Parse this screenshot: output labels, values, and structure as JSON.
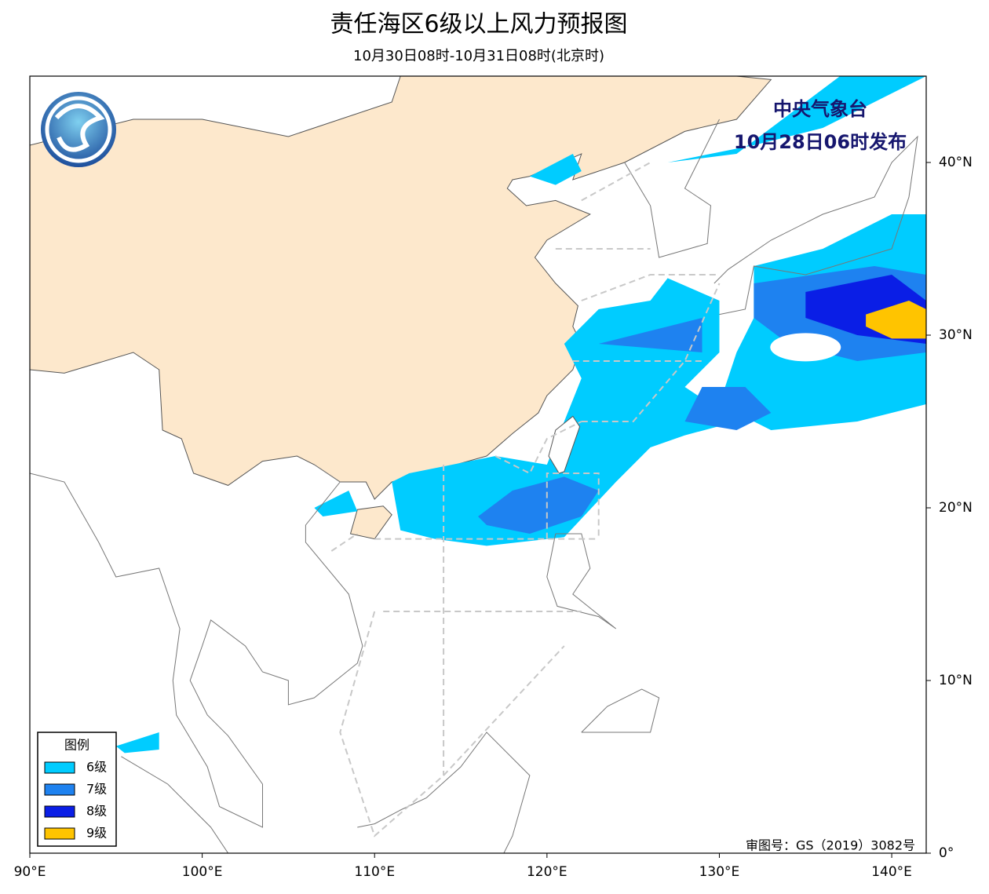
{
  "header": {
    "title": "责任海区6级以上风力预报图",
    "subtitle": "10月30日08时-10月31日08时(北京时)"
  },
  "map": {
    "issuer": "中央气象台",
    "issued": "10月28日06时发布",
    "approval": "审图号：GS（2019）3082号",
    "xlim": [
      90,
      142
    ],
    "ylim": [
      0,
      45
    ],
    "xticks": [
      {
        "value": 90,
        "label": "90°E"
      },
      {
        "value": 100,
        "label": "100°E"
      },
      {
        "value": 110,
        "label": "110°E"
      },
      {
        "value": 120,
        "label": "120°E"
      },
      {
        "value": 130,
        "label": "130°E"
      },
      {
        "value": 140,
        "label": "140°E"
      }
    ],
    "yticks": [
      {
        "value": 0,
        "label": "0°"
      },
      {
        "value": 10,
        "label": "10°N"
      },
      {
        "value": 20,
        "label": "20°N"
      },
      {
        "value": 30,
        "label": "30°N"
      },
      {
        "value": 40,
        "label": "40°N"
      }
    ]
  },
  "legend": {
    "title": "图例",
    "items": [
      {
        "label": "6级",
        "color": "#00ccff"
      },
      {
        "label": "7级",
        "color": "#1e82f0"
      },
      {
        "label": "8级",
        "color": "#0a1ee6"
      },
      {
        "label": "9级",
        "color": "#ffc400"
      }
    ]
  }
}
